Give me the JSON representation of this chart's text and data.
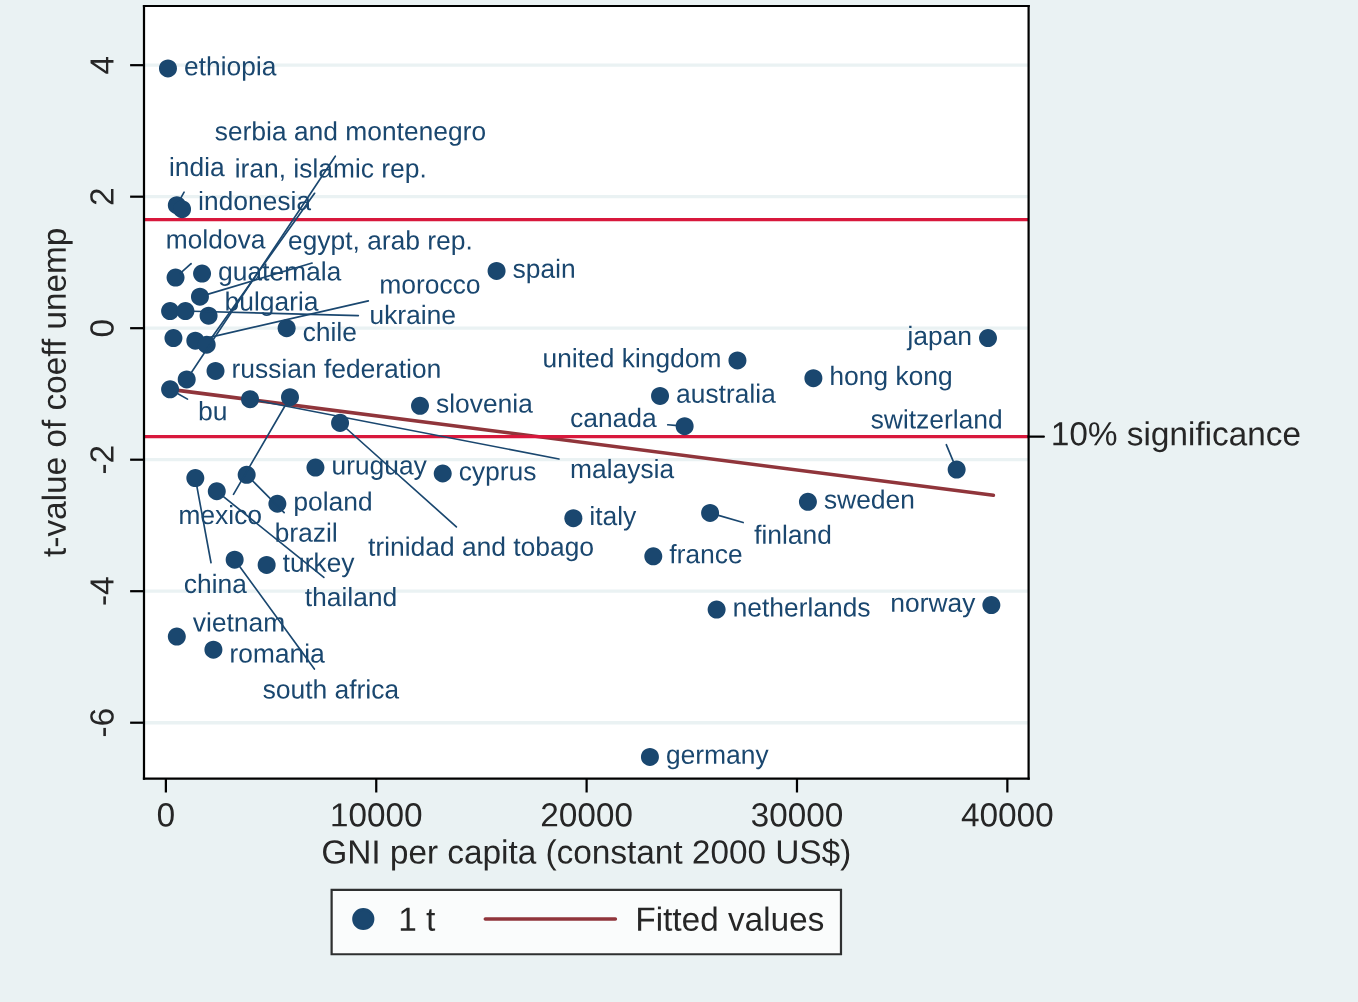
{
  "chart_data": {
    "type": "scatter",
    "xlabel": "GNI per capita (constant 2000 US$)",
    "ylabel": "t-value of coeff unemp",
    "xlim": [
      -1040,
      41010
    ],
    "xticks": [
      0,
      10000,
      20000,
      30000,
      40000
    ],
    "ylim": [
      -6.85,
      4.9
    ],
    "yticks": [
      -6,
      -4,
      -2,
      0,
      2,
      4
    ],
    "grid": "y",
    "legend": "bottom",
    "series": [
      {
        "name": "1 t",
        "color": "#1a476f",
        "marker": "circle",
        "x": [
          100,
          520,
          770,
          460,
          1720,
          1620,
          200,
          930,
          2030,
          5740,
          360,
          1400,
          1940,
          2360,
          990,
          200,
          4000,
          5900,
          12080,
          8280,
          1400,
          3840,
          2420,
          7110,
          13160,
          5300,
          3270,
          4790,
          520,
          2260,
          23010,
          15720,
          39080,
          27170,
          30780,
          23490,
          24660,
          37590,
          30520,
          25870,
          19370,
          23170,
          26180,
          39240
        ],
        "values": [
          3.95,
          1.87,
          1.81,
          0.77,
          0.83,
          0.48,
          0.26,
          0.26,
          0.19,
          0.0,
          -0.15,
          -0.19,
          -0.25,
          -0.65,
          -0.78,
          -0.93,
          -1.08,
          -1.05,
          -1.18,
          -1.44,
          -2.28,
          -2.23,
          -2.48,
          -2.12,
          -2.21,
          -2.67,
          -3.52,
          -3.6,
          -4.69,
          -4.89,
          -6.52,
          0.87,
          -0.15,
          -0.49,
          -0.76,
          -1.03,
          -1.49,
          -2.15,
          -2.64,
          -2.81,
          -2.89,
          -3.47,
          -4.28,
          -4.21
        ]
      },
      {
        "name": "Fitted values",
        "type": "line",
        "color": "#90353b",
        "x": [
          200,
          39335
        ],
        "values": [
          -0.93,
          -2.54
        ]
      }
    ],
    "ref_lines": [
      {
        "axis": "y",
        "value": 1.65,
        "color": "#d8183c"
      },
      {
        "axis": "y",
        "value": -1.65,
        "label": "10% significance",
        "color": "#d8183c"
      }
    ],
    "annotations": [
      {
        "text": "ethiopia",
        "x": 100,
        "y": 3.95
      },
      {
        "text": "india",
        "x": 520,
        "y": 1.87
      },
      {
        "text": "indonesia",
        "x": 770,
        "y": 1.81
      },
      {
        "text": "moldova",
        "x": 460,
        "y": 0.77
      },
      {
        "text": "guatemala",
        "x": 1720,
        "y": 0.83
      },
      {
        "text": "egypt, arab rep.",
        "x": 1620,
        "y": 0.48
      },
      {
        "text": "ukraine",
        "x": 930,
        "y": 0.26
      },
      {
        "text": "bulgaria",
        "x": 2030,
        "y": 0.19
      },
      {
        "text": "chile",
        "x": 5740,
        "y": 0.0
      },
      {
        "text": "morocco",
        "x": 1400,
        "y": -0.19
      },
      {
        "text": "iran, islamic rep.",
        "x": 1940,
        "y": -0.25
      },
      {
        "text": "russian federation",
        "x": 2360,
        "y": -0.65
      },
      {
        "text": "serbia and montenegro",
        "x": 990,
        "y": -0.78
      },
      {
        "text": "bu",
        "x": 200,
        "y": -0.93
      },
      {
        "text": "malaysia",
        "x": 4000,
        "y": -1.08
      },
      {
        "text": "mexico",
        "x": 5900,
        "y": -1.05
      },
      {
        "text": "slovenia",
        "x": 12080,
        "y": -1.18
      },
      {
        "text": "trinidad and tobago",
        "x": 8280,
        "y": -1.44
      },
      {
        "text": "china",
        "x": 1400,
        "y": -2.28
      },
      {
        "text": "brazil",
        "x": 3840,
        "y": -2.23
      },
      {
        "text": "thailand",
        "x": 2420,
        "y": -2.48
      },
      {
        "text": "uruguay",
        "x": 7110,
        "y": -2.12
      },
      {
        "text": "cyprus",
        "x": 13160,
        "y": -2.21
      },
      {
        "text": "poland",
        "x": 5300,
        "y": -2.67
      },
      {
        "text": "south africa",
        "x": 3270,
        "y": -3.52
      },
      {
        "text": "turkey",
        "x": 4790,
        "y": -3.6
      },
      {
        "text": "vietnam",
        "x": 520,
        "y": -4.69
      },
      {
        "text": "romania",
        "x": 2260,
        "y": -4.89
      },
      {
        "text": "germany",
        "x": 23010,
        "y": -6.52
      },
      {
        "text": "spain",
        "x": 15720,
        "y": 0.87
      },
      {
        "text": "japan",
        "x": 39080,
        "y": -0.15
      },
      {
        "text": "united kingdom",
        "x": 27170,
        "y": -0.49
      },
      {
        "text": "hong kong",
        "x": 30780,
        "y": -0.76
      },
      {
        "text": "australia",
        "x": 23490,
        "y": -1.03
      },
      {
        "text": "canada",
        "x": 24660,
        "y": -1.49
      },
      {
        "text": "switzerland",
        "x": 37590,
        "y": -2.15
      },
      {
        "text": "sweden",
        "x": 30520,
        "y": -2.64
      },
      {
        "text": "finland",
        "x": 25870,
        "y": -2.81
      },
      {
        "text": "italy",
        "x": 19370,
        "y": -2.89
      },
      {
        "text": "france",
        "x": 23170,
        "y": -3.47
      },
      {
        "text": "netherlands",
        "x": 26180,
        "y": -4.28
      },
      {
        "text": "norway",
        "x": 39240,
        "y": -4.21
      }
    ]
  }
}
